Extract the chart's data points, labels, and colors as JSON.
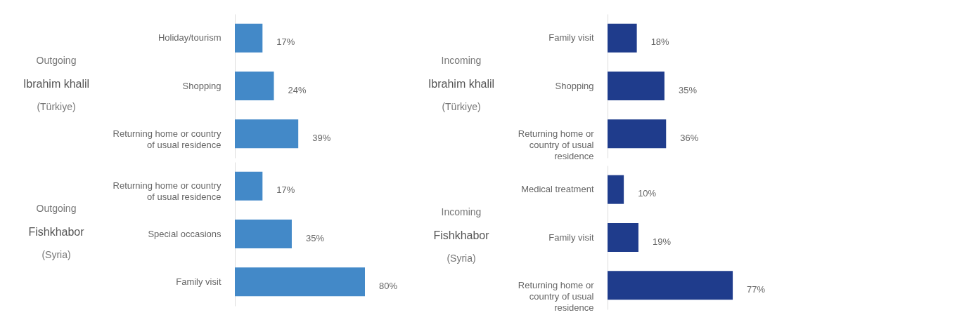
{
  "chart_data": [
    {
      "type": "bar",
      "orientation": "horizontal",
      "annotations": [
        "Outgoing"
      ],
      "title": "Ibrahim khalil",
      "subtitle": "(Türkiye)",
      "categories": [
        "Holiday/tourism",
        "Shopping",
        "Returning home or country of usual residence"
      ],
      "values": [
        17,
        24,
        39
      ],
      "value_labels": [
        "17%",
        "24%",
        "39%"
      ],
      "color": "#4389c8"
    },
    {
      "type": "bar",
      "orientation": "horizontal",
      "annotations": [
        "Outgoing"
      ],
      "title": "Fishkhabor",
      "subtitle": "(Syria)",
      "categories": [
        "Returning home or country of usual residence",
        "Special occasions",
        "Family visit"
      ],
      "values": [
        17,
        35,
        80
      ],
      "value_labels": [
        "17%",
        "35%",
        "80%"
      ],
      "color": "#4389c8"
    },
    {
      "type": "bar",
      "orientation": "horizontal",
      "annotations": [
        "Incoming"
      ],
      "title": "Ibrahim khalil",
      "subtitle": "(Türkiye)",
      "categories": [
        "Family visit",
        "Shopping",
        "Returning home or country of usual residence"
      ],
      "values": [
        18,
        35,
        36
      ],
      "value_labels": [
        "18%",
        "35%",
        "36%"
      ],
      "color": "#1f3c8c"
    },
    {
      "type": "bar",
      "orientation": "horizontal",
      "annotations": [
        "Incoming"
      ],
      "title": "Fishkhabor",
      "subtitle": "(Syria)",
      "categories": [
        "Medical treatment",
        "Family visit",
        "Returning home or country of usual residence"
      ],
      "values": [
        10,
        19,
        77
      ],
      "value_labels": [
        "10%",
        "19%",
        "77%"
      ],
      "color": "#1f3c8c"
    }
  ]
}
